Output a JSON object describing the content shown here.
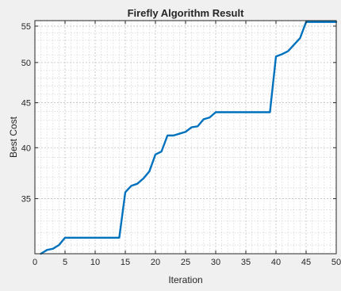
{
  "chart_data": {
    "type": "line",
    "title": "Firefly Algorithm Result",
    "xlabel": "Iteration",
    "ylabel": "Best Cost",
    "xlim": [
      0,
      50
    ],
    "ylim": [
      30.3,
      55.8
    ],
    "y_scale": "log",
    "x_ticks": [
      0,
      5,
      10,
      15,
      20,
      25,
      30,
      35,
      40,
      45,
      50
    ],
    "y_ticks": [
      35,
      40,
      45,
      50,
      55
    ],
    "grid": true,
    "minor_grid": true,
    "line_color": "#0072bd",
    "series": [
      {
        "x": [
          1,
          2,
          3,
          4,
          5,
          6,
          7,
          8,
          9,
          10,
          11,
          12,
          13,
          14,
          15,
          16,
          17,
          18,
          19,
          20,
          21,
          22,
          23,
          24,
          25,
          26,
          27,
          28,
          29,
          30,
          31,
          32,
          33,
          34,
          35,
          36,
          37,
          38,
          39,
          40,
          41,
          42,
          43,
          44,
          45,
          46,
          47,
          48,
          49,
          50
        ],
        "y": [
          30.3,
          30.6,
          30.7,
          31.0,
          31.6,
          31.6,
          31.6,
          31.6,
          31.6,
          31.6,
          31.6,
          31.6,
          31.6,
          31.6,
          35.6,
          36.2,
          36.4,
          36.9,
          37.6,
          39.3,
          39.6,
          41.3,
          41.3,
          41.5,
          41.7,
          42.2,
          42.3,
          43.1,
          43.3,
          43.9,
          43.9,
          43.9,
          43.9,
          43.9,
          43.9,
          43.9,
          43.9,
          43.9,
          43.9,
          50.8,
          51.1,
          51.5,
          52.4,
          53.3,
          55.6,
          55.6,
          55.6,
          55.6,
          55.6,
          55.6
        ]
      }
    ]
  }
}
